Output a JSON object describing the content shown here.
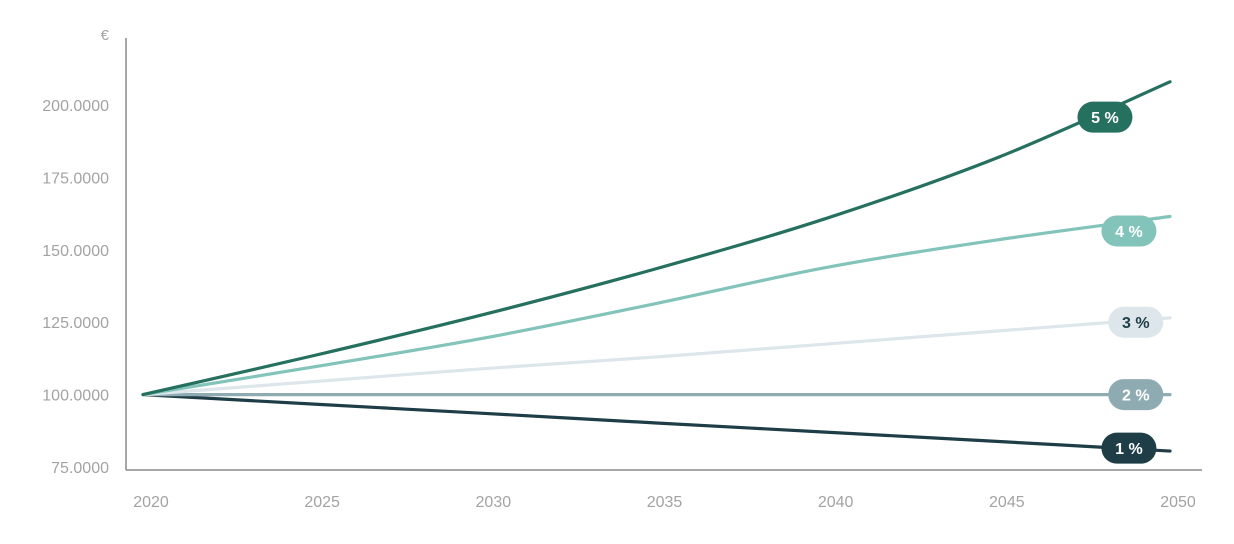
{
  "chart_data": {
    "type": "line",
    "title": "",
    "xlabel": "",
    "ylabel": "",
    "y_unit": "€",
    "xlim": [
      2020,
      2050
    ],
    "ylim": [
      75,
      210
    ],
    "x_ticks": [
      2020,
      2025,
      2030,
      2035,
      2040,
      2045,
      2050
    ],
    "x_tick_labels": [
      "2020",
      "2025",
      "2030",
      "2035",
      "2040",
      "2045",
      "2050"
    ],
    "y_ticks": [
      75,
      100,
      125,
      150,
      175,
      200
    ],
    "y_tick_labels": [
      "75.0000",
      "100.0000",
      "125.0000",
      "150.0000",
      "175.0000",
      "200.0000"
    ],
    "grid": false,
    "legend": "none (inline labels near line ends)",
    "x": [
      2020,
      2025,
      2030,
      2035,
      2040,
      2045,
      2050
    ],
    "series": [
      {
        "name": "5 %",
        "color": "#26705f",
        "label_at": [
          2048.1,
          195.8
        ],
        "values": [
          100,
          113.5,
          127.8,
          143.5,
          161.0,
          182.0,
          208.0
        ]
      },
      {
        "name": "4 %",
        "color": "#82c3ba",
        "label_at": [
          2048.8,
          156.5
        ],
        "values": [
          100,
          109.6,
          119.6,
          131.5,
          144.0,
          153.5,
          161.5
        ]
      },
      {
        "name": "3 %",
        "color": "#dce6eb",
        "label_at": [
          2049.0,
          125.0
        ],
        "values": [
          100,
          104.5,
          109.0,
          113.0,
          117.5,
          122.0,
          126.5
        ]
      },
      {
        "name": "2 %",
        "color": "#8fabb2",
        "label_at": [
          2049.0,
          100.0
        ],
        "values": [
          100,
          100,
          100,
          100,
          100,
          100,
          100
        ]
      },
      {
        "name": "1 %",
        "color": "#1e3d47",
        "label_at": [
          2048.8,
          81.5
        ],
        "values": [
          100,
          96.7,
          93.5,
          90.2,
          87.0,
          83.8,
          80.5
        ]
      }
    ]
  }
}
